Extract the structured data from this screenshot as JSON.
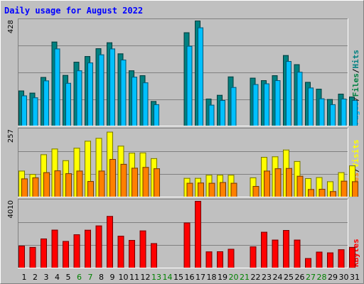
{
  "colors": {
    "background": "#c0c0c0",
    "pages": "#008040",
    "files": "#00c0ff",
    "hits": "#008080",
    "visits": "#ffff00",
    "sites": "#ff8000",
    "kbytes": "#ff0000",
    "weekend_label": "#008000",
    "weekday_label": "#000000"
  },
  "chart_data": {
    "type": "bar",
    "title": "Daily usage for August 2022",
    "categories": [
      "1",
      "2",
      "3",
      "4",
      "5",
      "6",
      "7",
      "8",
      "9",
      "10",
      "11",
      "12",
      "13",
      "14",
      "15",
      "16",
      "17",
      "18",
      "19",
      "20",
      "21",
      "22",
      "23",
      "24",
      "25",
      "26",
      "27",
      "28",
      "29",
      "30",
      "31"
    ],
    "weekend_days": [
      "6",
      "7",
      "13",
      "14",
      "20",
      "21",
      "27",
      "28"
    ],
    "panels": [
      {
        "name": "hits_files_pages",
        "ymax_label": "428",
        "ylim": [
          0,
          428
        ],
        "axis_label_parts": [
          "Pages",
          "/",
          "Files",
          "/",
          "Hits"
        ],
        "series": [
          {
            "name": "Hits",
            "values": [
              143,
              134,
              198,
              342,
              206,
              260,
              283,
              315,
              339,
              294,
              225,
              205,
              100,
              0,
              0,
              380,
              428,
              110,
              125,
              200,
              0,
              195,
              185,
              205,
              287,
              250,
              178,
              150,
              108,
              130,
              118
            ]
          },
          {
            "name": "Files",
            "values": [
              123,
              115,
              184,
              314,
              174,
              225,
              257,
              290,
              314,
              269,
              199,
              176,
              87,
              0,
              0,
              325,
              400,
              85,
              104,
              157,
              0,
              169,
              172,
              185,
              263,
              219,
              155,
              111,
              87,
              110,
              104
            ]
          }
        ]
      },
      {
        "name": "visits_sites",
        "ymax_label": "257",
        "ylim": [
          0,
          257
        ],
        "axis_label_parts": [
          "Sites",
          "/",
          "Visits"
        ],
        "series": [
          {
            "name": "Visits",
            "values": [
              100,
              87,
              163,
              185,
              140,
              188,
              215,
              226,
              250,
              196,
              169,
              170,
              148,
              0,
              0,
              72,
              72,
              84,
              84,
              84,
              0,
              74,
              153,
              155,
              181,
              137,
              71,
              75,
              59,
              94,
              120
            ]
          },
          {
            "name": "Sites",
            "values": [
              70,
              74,
              94,
              101,
              90,
              100,
              60,
              100,
              145,
              126,
              111,
              114,
              109,
              0,
              0,
              53,
              54,
              53,
              56,
              53,
              0,
              41,
              100,
              109,
              110,
              80,
              29,
              30,
              21,
              61,
              59
            ]
          }
        ]
      },
      {
        "name": "kbytes",
        "ymax_label": "4010",
        "ylim": [
          0,
          4010
        ],
        "axis_label_parts": [
          "KBytes"
        ],
        "series": [
          {
            "name": "KBytes",
            "values": [
              1320,
              1240,
              1750,
              2280,
              1600,
              2000,
              2270,
              2530,
              3100,
              1910,
              1660,
              2230,
              1470,
              0,
              0,
              2710,
              4010,
              970,
              980,
              1130,
              0,
              1270,
              2150,
              1680,
              2260,
              1680,
              570,
              960,
              910,
              1100,
              1240
            ]
          }
        ]
      }
    ]
  }
}
